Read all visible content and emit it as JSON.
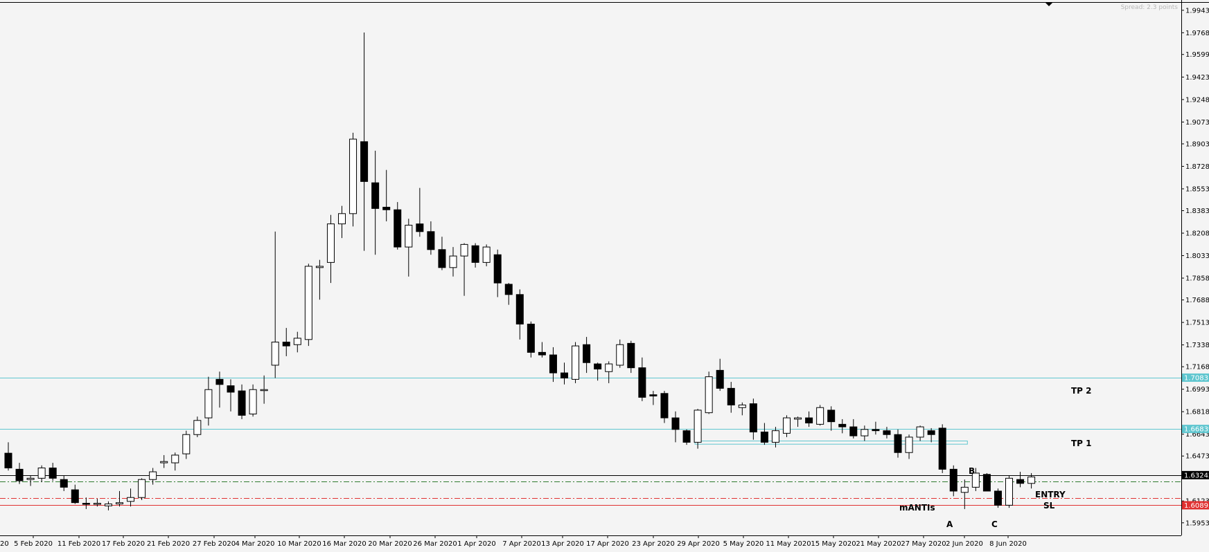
{
  "chart_data": {
    "type": "candlestick",
    "y_axis": {
      "ylim": [
        1.5855,
        1.9996
      ],
      "side": "right",
      "tick_labels": [
        "1.99430",
        "1.97680",
        "1.95990",
        "1.94230",
        "1.92480",
        "1.90730",
        "1.89030",
        "1.87280",
        "1.85530",
        "1.83830",
        "1.82080",
        "1.80330",
        "1.78580",
        "1.76880",
        "1.75130",
        "1.73380",
        "1.71680",
        "1.69930",
        "1.68180",
        "1.66430",
        "1.64730",
        "1.61230",
        "1.59530"
      ]
    },
    "x_axis": {
      "tick_labels": [
        "20",
        "5 Feb 2020",
        "11 Feb 2020",
        "17 Feb 2020",
        "21 Feb 2020",
        "27 Feb 2020",
        "4 Mar 2020",
        "10 Mar 2020",
        "16 Mar 2020",
        "20 Mar 2020",
        "26 Mar 2020",
        "1 Apr 2020",
        "7 Apr 2020",
        "13 Apr 2020",
        "17 Apr 2020",
        "23 Apr 2020",
        "29 Apr 2020",
        "5 May 2020",
        "11 May 2020",
        "15 May 2020",
        "21 May 2020",
        "27 May 2020",
        "2 Jun 2020",
        "8 Jun 2020"
      ]
    },
    "candles": [
      {
        "o": 1.6495,
        "h": 1.658,
        "l": 1.636,
        "c": 1.638
      },
      {
        "o": 1.637,
        "h": 1.642,
        "l": 1.6255,
        "c": 1.628
      },
      {
        "o": 1.629,
        "h": 1.632,
        "l": 1.624,
        "c": 1.63
      },
      {
        "o": 1.63,
        "h": 1.64,
        "l": 1.627,
        "c": 1.638
      },
      {
        "o": 1.638,
        "h": 1.642,
        "l": 1.628,
        "c": 1.63
      },
      {
        "o": 1.629,
        "h": 1.632,
        "l": 1.62,
        "c": 1.623
      },
      {
        "o": 1.621,
        "h": 1.625,
        "l": 1.61,
        "c": 1.611
      },
      {
        "o": 1.6105,
        "h": 1.615,
        "l": 1.606,
        "c": 1.61
      },
      {
        "o": 1.61,
        "h": 1.614,
        "l": 1.608,
        "c": 1.6105
      },
      {
        "o": 1.6085,
        "h": 1.612,
        "l": 1.605,
        "c": 1.61
      },
      {
        "o": 1.61,
        "h": 1.62,
        "l": 1.608,
        "c": 1.611
      },
      {
        "o": 1.612,
        "h": 1.622,
        "l": 1.608,
        "c": 1.615
      },
      {
        "o": 1.615,
        "h": 1.63,
        "l": 1.613,
        "c": 1.629
      },
      {
        "o": 1.629,
        "h": 1.638,
        "l": 1.625,
        "c": 1.635
      },
      {
        "o": 1.642,
        "h": 1.648,
        "l": 1.638,
        "c": 1.643
      },
      {
        "o": 1.642,
        "h": 1.65,
        "l": 1.636,
        "c": 1.648
      },
      {
        "o": 1.649,
        "h": 1.667,
        "l": 1.645,
        "c": 1.664
      },
      {
        "o": 1.664,
        "h": 1.678,
        "l": 1.662,
        "c": 1.675
      },
      {
        "o": 1.677,
        "h": 1.709,
        "l": 1.671,
        "c": 1.699
      },
      {
        "o": 1.707,
        "h": 1.713,
        "l": 1.685,
        "c": 1.703
      },
      {
        "o": 1.702,
        "h": 1.707,
        "l": 1.682,
        "c": 1.697
      },
      {
        "o": 1.698,
        "h": 1.703,
        "l": 1.676,
        "c": 1.679
      },
      {
        "o": 1.68,
        "h": 1.703,
        "l": 1.678,
        "c": 1.699
      },
      {
        "o": 1.699,
        "h": 1.71,
        "l": 1.688,
        "c": 1.699
      },
      {
        "o": 1.718,
        "h": 1.822,
        "l": 1.708,
        "c": 1.736
      },
      {
        "o": 1.736,
        "h": 1.747,
        "l": 1.725,
        "c": 1.733
      },
      {
        "o": 1.734,
        "h": 1.744,
        "l": 1.728,
        "c": 1.739
      },
      {
        "o": 1.738,
        "h": 1.797,
        "l": 1.733,
        "c": 1.795
      },
      {
        "o": 1.794,
        "h": 1.8,
        "l": 1.769,
        "c": 1.795
      },
      {
        "o": 1.798,
        "h": 1.835,
        "l": 1.782,
        "c": 1.828
      },
      {
        "o": 1.828,
        "h": 1.842,
        "l": 1.817,
        "c": 1.836
      },
      {
        "o": 1.836,
        "h": 1.899,
        "l": 1.826,
        "c": 1.894
      },
      {
        "o": 1.892,
        "h": 1.977,
        "l": 1.807,
        "c": 1.861
      },
      {
        "o": 1.86,
        "h": 1.885,
        "l": 1.804,
        "c": 1.84
      },
      {
        "o": 1.841,
        "h": 1.87,
        "l": 1.83,
        "c": 1.839
      },
      {
        "o": 1.839,
        "h": 1.845,
        "l": 1.808,
        "c": 1.81
      },
      {
        "o": 1.81,
        "h": 1.832,
        "l": 1.787,
        "c": 1.827
      },
      {
        "o": 1.828,
        "h": 1.856,
        "l": 1.818,
        "c": 1.822
      },
      {
        "o": 1.822,
        "h": 1.83,
        "l": 1.804,
        "c": 1.808
      },
      {
        "o": 1.808,
        "h": 1.818,
        "l": 1.792,
        "c": 1.794
      },
      {
        "o": 1.794,
        "h": 1.81,
        "l": 1.787,
        "c": 1.803
      },
      {
        "o": 1.803,
        "h": 1.813,
        "l": 1.772,
        "c": 1.812
      },
      {
        "o": 1.811,
        "h": 1.813,
        "l": 1.794,
        "c": 1.798
      },
      {
        "o": 1.798,
        "h": 1.812,
        "l": 1.795,
        "c": 1.81
      },
      {
        "o": 1.804,
        "h": 1.808,
        "l": 1.771,
        "c": 1.782
      },
      {
        "o": 1.781,
        "h": 1.782,
        "l": 1.765,
        "c": 1.773
      },
      {
        "o": 1.773,
        "h": 1.777,
        "l": 1.738,
        "c": 1.75
      },
      {
        "o": 1.75,
        "h": 1.752,
        "l": 1.724,
        "c": 1.728
      },
      {
        "o": 1.728,
        "h": 1.736,
        "l": 1.724,
        "c": 1.726
      },
      {
        "o": 1.726,
        "h": 1.732,
        "l": 1.705,
        "c": 1.712
      },
      {
        "o": 1.712,
        "h": 1.72,
        "l": 1.703,
        "c": 1.708
      },
      {
        "o": 1.707,
        "h": 1.736,
        "l": 1.704,
        "c": 1.733
      },
      {
        "o": 1.734,
        "h": 1.74,
        "l": 1.712,
        "c": 1.72
      },
      {
        "o": 1.719,
        "h": 1.72,
        "l": 1.706,
        "c": 1.715
      },
      {
        "o": 1.713,
        "h": 1.721,
        "l": 1.704,
        "c": 1.719
      },
      {
        "o": 1.718,
        "h": 1.738,
        "l": 1.716,
        "c": 1.734
      },
      {
        "o": 1.735,
        "h": 1.737,
        "l": 1.712,
        "c": 1.716
      },
      {
        "o": 1.716,
        "h": 1.724,
        "l": 1.69,
        "c": 1.693
      },
      {
        "o": 1.695,
        "h": 1.698,
        "l": 1.687,
        "c": 1.694
      },
      {
        "o": 1.696,
        "h": 1.698,
        "l": 1.673,
        "c": 1.677
      },
      {
        "o": 1.677,
        "h": 1.682,
        "l": 1.658,
        "c": 1.668
      },
      {
        "o": 1.667,
        "h": 1.668,
        "l": 1.656,
        "c": 1.658
      },
      {
        "o": 1.658,
        "h": 1.684,
        "l": 1.653,
        "c": 1.683
      },
      {
        "o": 1.681,
        "h": 1.713,
        "l": 1.68,
        "c": 1.709
      },
      {
        "o": 1.714,
        "h": 1.723,
        "l": 1.698,
        "c": 1.7
      },
      {
        "o": 1.7,
        "h": 1.705,
        "l": 1.681,
        "c": 1.687
      },
      {
        "o": 1.685,
        "h": 1.689,
        "l": 1.679,
        "c": 1.687
      },
      {
        "o": 1.688,
        "h": 1.692,
        "l": 1.66,
        "c": 1.666
      },
      {
        "o": 1.666,
        "h": 1.673,
        "l": 1.656,
        "c": 1.658
      },
      {
        "o": 1.658,
        "h": 1.67,
        "l": 1.654,
        "c": 1.667
      },
      {
        "o": 1.665,
        "h": 1.679,
        "l": 1.662,
        "c": 1.677
      },
      {
        "o": 1.676,
        "h": 1.678,
        "l": 1.67,
        "c": 1.677
      },
      {
        "o": 1.677,
        "h": 1.682,
        "l": 1.67,
        "c": 1.673
      },
      {
        "o": 1.672,
        "h": 1.687,
        "l": 1.671,
        "c": 1.685
      },
      {
        "o": 1.683,
        "h": 1.686,
        "l": 1.667,
        "c": 1.674
      },
      {
        "o": 1.672,
        "h": 1.676,
        "l": 1.665,
        "c": 1.67
      },
      {
        "o": 1.67,
        "h": 1.676,
        "l": 1.661,
        "c": 1.663
      },
      {
        "o": 1.663,
        "h": 1.671,
        "l": 1.659,
        "c": 1.668
      },
      {
        "o": 1.668,
        "h": 1.674,
        "l": 1.664,
        "c": 1.667
      },
      {
        "o": 1.667,
        "h": 1.67,
        "l": 1.661,
        "c": 1.664
      },
      {
        "o": 1.664,
        "h": 1.668,
        "l": 1.646,
        "c": 1.65
      },
      {
        "o": 1.65,
        "h": 1.664,
        "l": 1.645,
        "c": 1.662
      },
      {
        "o": 1.662,
        "h": 1.671,
        "l": 1.659,
        "c": 1.67
      },
      {
        "o": 1.667,
        "h": 1.669,
        "l": 1.658,
        "c": 1.664
      },
      {
        "o": 1.669,
        "h": 1.672,
        "l": 1.634,
        "c": 1.637
      },
      {
        "o": 1.637,
        "h": 1.64,
        "l": 1.616,
        "c": 1.62
      },
      {
        "o": 1.619,
        "h": 1.629,
        "l": 1.606,
        "c": 1.623
      },
      {
        "o": 1.623,
        "h": 1.638,
        "l": 1.62,
        "c": 1.634
      },
      {
        "o": 1.633,
        "h": 1.634,
        "l": 1.621,
        "c": 1.62
      },
      {
        "o": 1.62,
        "h": 1.622,
        "l": 1.607,
        "c": 1.609
      },
      {
        "o": 1.609,
        "h": 1.632,
        "l": 1.607,
        "c": 1.63
      },
      {
        "o": 1.629,
        "h": 1.635,
        "l": 1.623,
        "c": 1.626
      },
      {
        "o": 1.626,
        "h": 1.634,
        "l": 1.622,
        "c": 1.631
      }
    ],
    "horizontal_lines": [
      {
        "name": "TP 2",
        "value": 1.70831,
        "price_label": "1.70831",
        "color": "#5fc6cf",
        "style": "solid"
      },
      {
        "name": "TP 1",
        "value": 1.66839,
        "price_label": "1.66839",
        "color": "#5fc6cf",
        "style": "solid"
      },
      {
        "name": "ENTRY",
        "value": 1.63242,
        "price_label": "1.63242",
        "color": "#000000",
        "style": "solid"
      },
      {
        "name": "SL",
        "value": 1.60895,
        "price_label": "1.60895",
        "color": "#e03030",
        "style": "solid"
      },
      {
        "name": "",
        "value": 1.6275,
        "color": "#2d7a2d",
        "style": "dashdot"
      },
      {
        "name": "",
        "value": 1.6145,
        "color": "#e03030",
        "style": "dashdot"
      }
    ],
    "zone": {
      "from_index": 62,
      "to_index": 86,
      "top": 1.659,
      "bottom": 1.6565,
      "color": "#5fc6cf"
    },
    "annotations": {
      "tp2": "TP 2",
      "tp1": "TP 1",
      "entry": "ENTRY",
      "sl": "SL",
      "a": "A",
      "b": "B",
      "c": "C",
      "watermark": "mANTIs",
      "spread": "Spread: 2.3 points"
    },
    "colors": {
      "background": "#f4f4f4",
      "bull": "#ffffff",
      "bear": "#000000",
      "grid": "none"
    }
  }
}
